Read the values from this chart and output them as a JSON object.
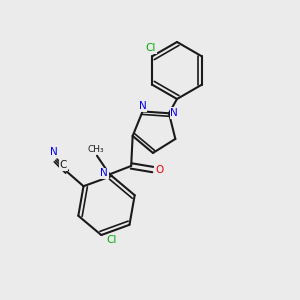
{
  "background_color": "#ebebeb",
  "bond_color": "#1a1a1a",
  "atom_colors": {
    "N": "#0000ee",
    "O": "#ee0000",
    "Cl": "#00aa00",
    "C": "#1a1a1a"
  },
  "figsize": [
    3.0,
    3.0
  ],
  "dpi": 100
}
